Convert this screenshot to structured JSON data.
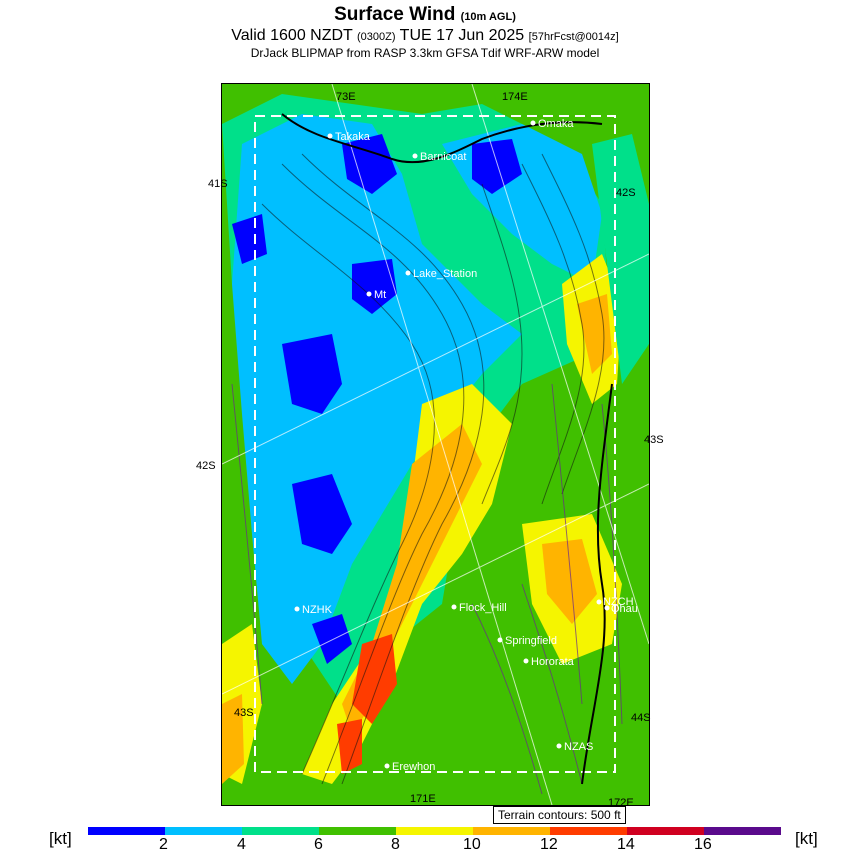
{
  "header": {
    "title": "Surface Wind",
    "title_note": "(10m AGL)",
    "valid_main": "Valid 1600 NZDT",
    "valid_utc": "(0300Z)",
    "valid_date": "TUE 17 Jun 2025",
    "forecast": "[57hrFcst@0014z]",
    "source": "DrJack BLIPMAP from RASP 3.3km GFSA Tdif WRF-ARW model"
  },
  "map": {
    "places": [
      {
        "name": "Takaka"
      },
      {
        "name": "Omaka"
      },
      {
        "name": "Barnicoat"
      },
      {
        "name": "Lake_Station"
      },
      {
        "name": "Mt"
      },
      {
        "name": "NZHK"
      },
      {
        "name": "Flock_Hill"
      },
      {
        "name": "NZCH"
      },
      {
        "name": "Ohau"
      },
      {
        "name": "Springfield"
      },
      {
        "name": "Hororata"
      },
      {
        "name": "NZAS"
      },
      {
        "name": "Erewhon"
      }
    ],
    "grid_labels": [
      "41S",
      "42S",
      "42S",
      "43S",
      "43S",
      "44S",
      "73E",
      "174E",
      "171E",
      "172E"
    ],
    "terrain_note": "Terrain contours: 500 ft"
  },
  "colorbar": {
    "unit": "[kt]",
    "ticks": [
      "2",
      "4",
      "6",
      "8",
      "10",
      "12",
      "14",
      "16"
    ],
    "colors": [
      "#0000ff",
      "#00bfff",
      "#00e08a",
      "#40c000",
      "#f5f500",
      "#ffb400",
      "#ff3c00",
      "#d00020",
      "#5a0a8c"
    ]
  }
}
